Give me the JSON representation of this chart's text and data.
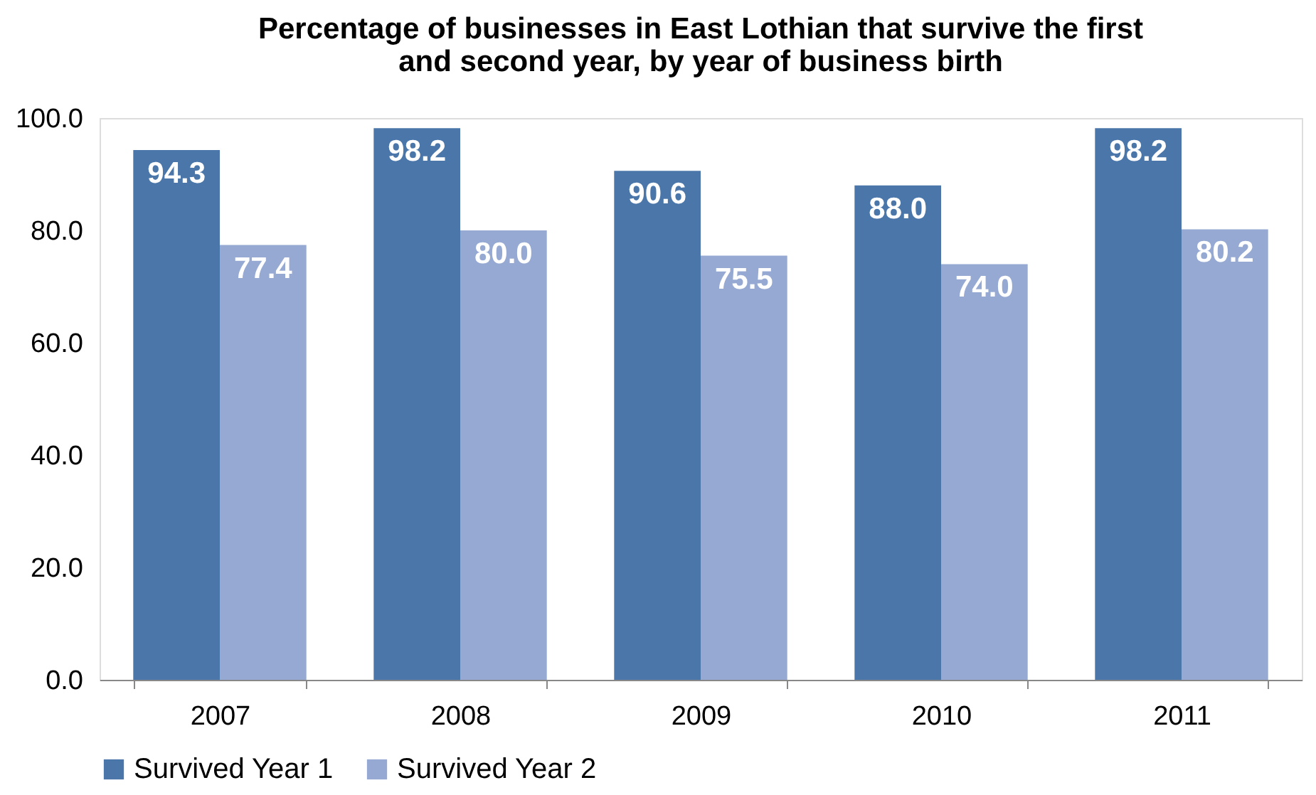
{
  "chart_data": {
    "type": "bar",
    "title": [
      "Percentage of businesses in East Lothian that survive the first",
      "and second year, by year of business birth"
    ],
    "categories": [
      "2007",
      "2008",
      "2009",
      "2010",
      "2011"
    ],
    "series": [
      {
        "name": "Survived Year 1",
        "color": "#4a76aa",
        "values": [
          94.3,
          98.2,
          90.6,
          88.0,
          98.2
        ],
        "value_labels": [
          "94.3",
          "98.2",
          "90.6",
          "88.0",
          "98.2"
        ]
      },
      {
        "name": "Survived Year 2",
        "color": "#95a9d2",
        "values": [
          77.4,
          80.0,
          75.5,
          74.0,
          80.2
        ],
        "value_labels": [
          "77.4",
          "80.0",
          "75.5",
          "74.0",
          "80.2"
        ]
      }
    ],
    "ylim": [
      0,
      100
    ],
    "yticks": [
      {
        "value": 0,
        "label": "0.0"
      },
      {
        "value": 20,
        "label": "20.0"
      },
      {
        "value": 40,
        "label": "40.0"
      },
      {
        "value": 60,
        "label": "60.0"
      },
      {
        "value": 80,
        "label": "80.0"
      },
      {
        "value": 100,
        "label": "100.0"
      }
    ],
    "grid": false,
    "legend": "bottom"
  }
}
